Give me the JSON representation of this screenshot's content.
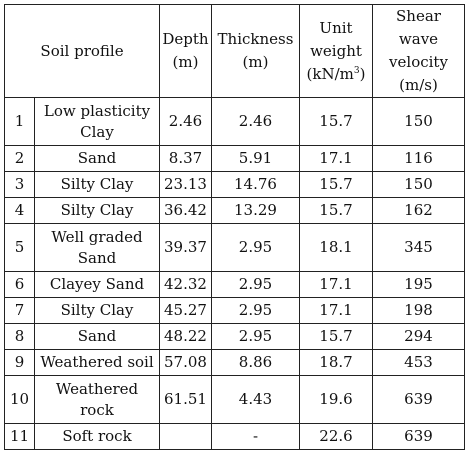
{
  "table": {
    "headers": {
      "soil_profile": "Soil profile",
      "depth_line1": "Depth",
      "depth_line2": "(m)",
      "thickness_line1": "Thickness",
      "thickness_line2": "(m)",
      "unit_weight_line1": "Unit",
      "unit_weight_line2": "weight",
      "unit_weight_unit_base": "(kN/m",
      "unit_weight_unit_exp": "3",
      "unit_weight_unit_close": ")",
      "shear_line1": "Shear",
      "shear_line2": "wave",
      "shear_line3": "velocity",
      "shear_line4": "(m/s)"
    },
    "rows": [
      {
        "no": "1",
        "soil_line1": "Low plasticity",
        "soil_line2": "Clay",
        "depth": "2.46",
        "thickness": "2.46",
        "unit_weight": "15.7",
        "velocity": "150"
      },
      {
        "no": "2",
        "soil": "Sand",
        "depth": "8.37",
        "thickness": "5.91",
        "unit_weight": "17.1",
        "velocity": "116"
      },
      {
        "no": "3",
        "soil": "Silty Clay",
        "depth": "23.13",
        "thickness": "14.76",
        "unit_weight": "15.7",
        "velocity": "150"
      },
      {
        "no": "4",
        "soil": "Silty Clay",
        "depth": "36.42",
        "thickness": "13.29",
        "unit_weight": "15.7",
        "velocity": "162"
      },
      {
        "no": "5",
        "soil_line1": "Well graded",
        "soil_line2": "Sand",
        "depth": "39.37",
        "thickness": "2.95",
        "unit_weight": "18.1",
        "velocity": "345"
      },
      {
        "no": "6",
        "soil": "Clayey Sand",
        "depth": "42.32",
        "thickness": "2.95",
        "unit_weight": "17.1",
        "velocity": "195"
      },
      {
        "no": "7",
        "soil": "Silty Clay",
        "depth": "45.27",
        "thickness": "2.95",
        "unit_weight": "17.1",
        "velocity": "198"
      },
      {
        "no": "8",
        "soil": "Sand",
        "depth": "48.22",
        "thickness": "2.95",
        "unit_weight": "15.7",
        "velocity": "294"
      },
      {
        "no": "9",
        "soil": "Weathered soil",
        "depth": "57.08",
        "thickness": "8.86",
        "unit_weight": "18.7",
        "velocity": "453"
      },
      {
        "no": "10",
        "soil_line1": "Weathered",
        "soil_line2": "rock",
        "depth": "61.51",
        "thickness": "4.43",
        "unit_weight": "19.6",
        "velocity": "639"
      },
      {
        "no": "11",
        "soil": "Soft rock",
        "depth": "",
        "thickness": "-",
        "unit_weight": "22.6",
        "velocity": "639"
      }
    ]
  }
}
